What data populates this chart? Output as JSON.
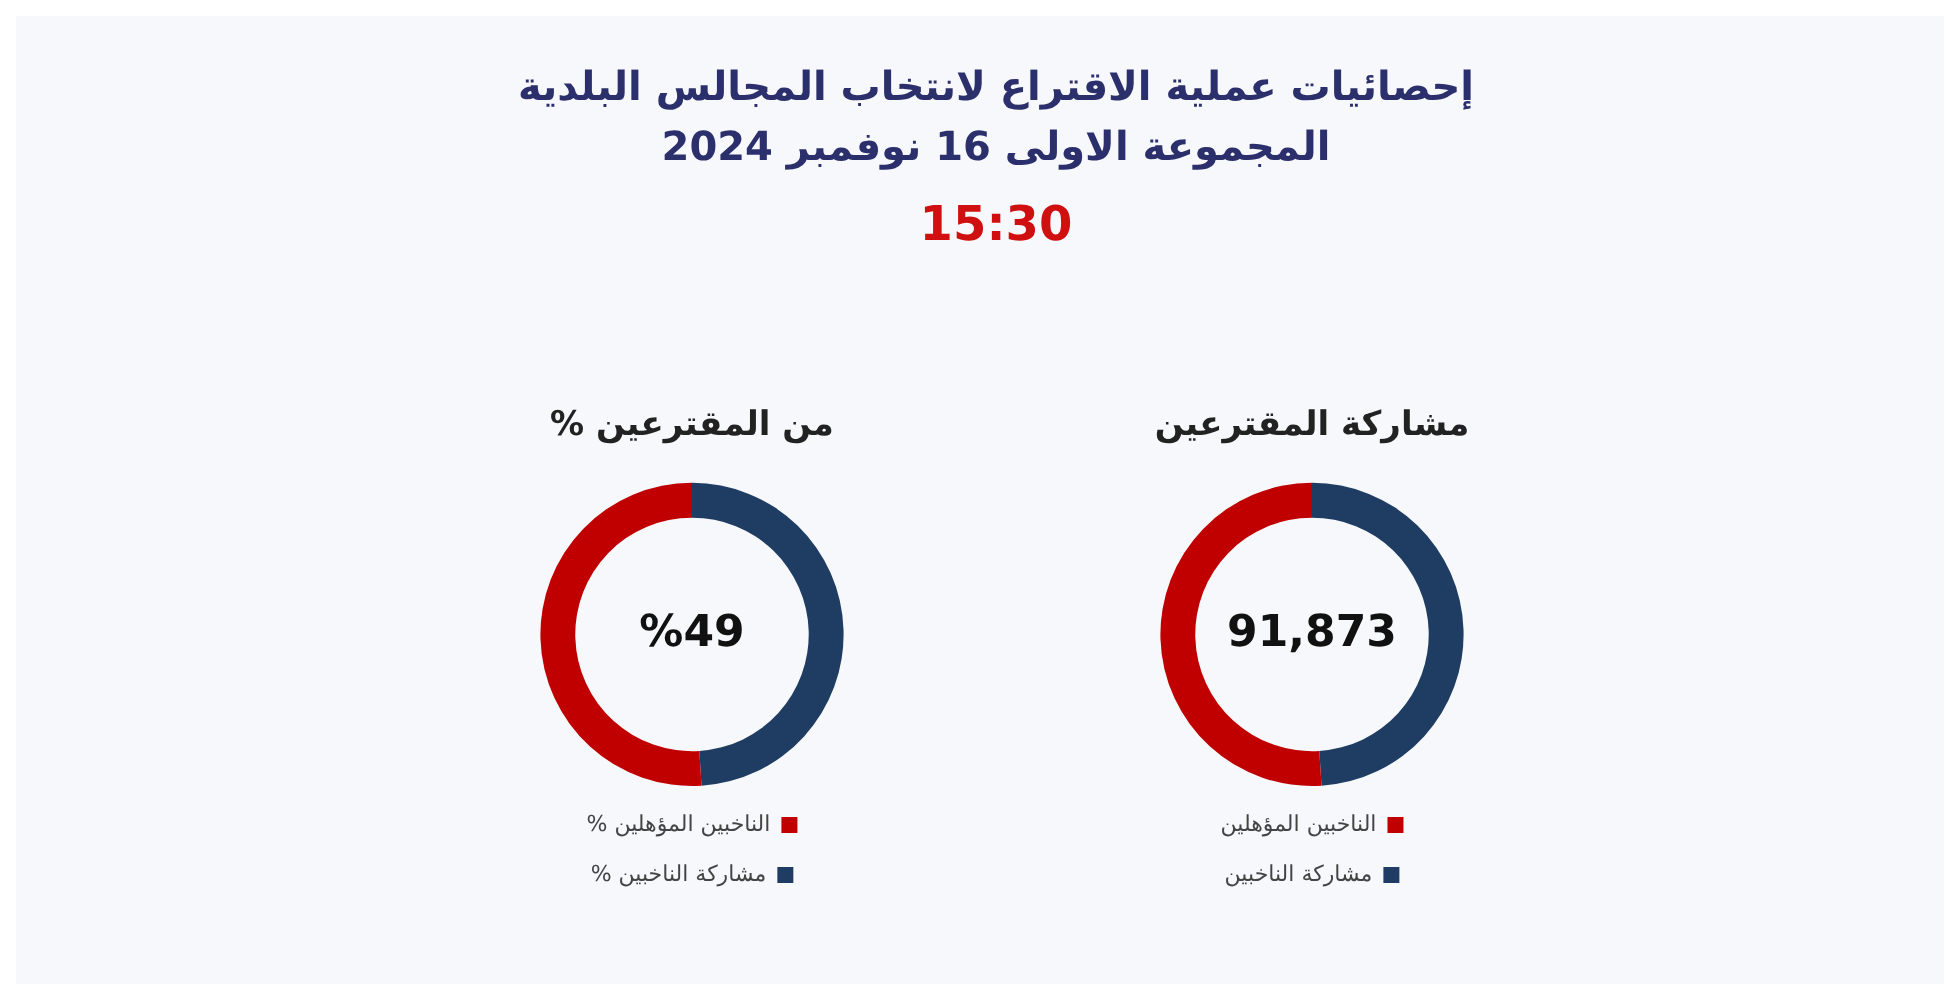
{
  "chart_data": [
    {
      "type": "other",
      "title": "إحصائيات عملية الاقتراع لانتخاب المجالس البلدية",
      "subtitle": "المجموعة الاولى 16 نوفمبر 2024",
      "annotations": [
        "15:30"
      ]
    },
    {
      "type": "donut",
      "title": "% من المقترعين",
      "categories": [
        "% مشاركة الناخبين",
        "% الناخبين المؤهلين"
      ],
      "values": [
        49,
        51
      ],
      "colors": [
        "#1f3d63",
        "#c00000"
      ],
      "annotations": [
        "%49"
      ],
      "legend": "bottom"
    },
    {
      "type": "donut",
      "title": "مشاركة المقترعين",
      "categories": [
        "مشاركة الناخبين",
        "الناخبين المؤهلين"
      ],
      "values": [
        49,
        51
      ],
      "colors": [
        "#1f3d63",
        "#c00000"
      ],
      "annotations": [
        "91,873"
      ],
      "legend": "bottom"
    }
  ]
}
